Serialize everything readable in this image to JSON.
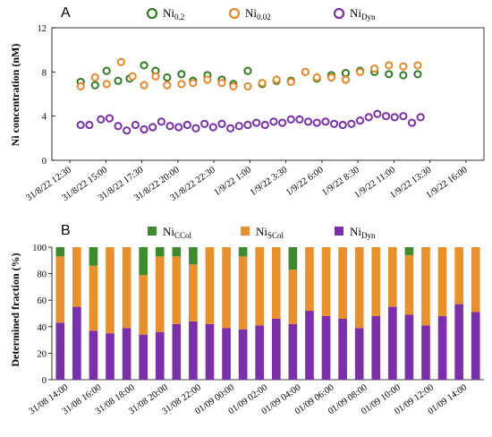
{
  "panel_a": {
    "letter": "A",
    "legend": [
      {
        "label_main": "Ni",
        "label_sub": "0.2",
        "color": "#2e7d23"
      },
      {
        "label_main": "Ni",
        "label_sub": "0.02",
        "color": "#e8862a"
      },
      {
        "label_main": "Ni",
        "label_sub": "Dyn",
        "color": "#7b2fa8"
      }
    ]
  },
  "panel_b": {
    "letter": "B",
    "legend": [
      {
        "label_main": "Ni",
        "label_sub": "CCol",
        "color": "#3f8a2e"
      },
      {
        "label_main": "Ni",
        "label_sub": "SCol",
        "color": "#e8902e"
      },
      {
        "label_main": "Ni",
        "label_sub": "Dyn",
        "color": "#7b2fa8"
      }
    ]
  },
  "chart_data": [
    {
      "type": "scatter",
      "ylabel": "Ni concentration (nM)",
      "ylim": [
        0,
        12
      ],
      "yticks": [
        "0",
        "4",
        "8",
        "12"
      ],
      "xlim_index": [
        0,
        15
      ],
      "xticks": [
        "31/8/22 12:30",
        "31/8/22 15:00",
        "31/8/22 17:30",
        "31/8/22 20:00",
        "31/8/22 22:30",
        "1/9/22 1:00",
        "1/9/22 3:30",
        "1/9/22 6:00",
        "1/9/22 8:30",
        "1/9/22 11:00",
        "1/9/22 13:30",
        "1/9/22 16:00"
      ],
      "grid": false,
      "legend_position": "top",
      "series": [
        {
          "name": "Ni0.2",
          "color": "#2e7d23",
          "x": [
            1.0,
            1.5,
            1.9,
            2.3,
            2.7,
            3.2,
            3.6,
            4.0,
            4.5,
            4.9,
            5.4,
            5.9,
            6.3,
            6.8,
            7.3,
            7.8,
            8.3,
            8.8,
            9.2,
            9.7,
            10.2,
            10.7,
            11.2,
            11.7,
            12.2,
            12.7
          ],
          "values": [
            7.1,
            6.8,
            8.1,
            7.2,
            7.4,
            8.6,
            8.1,
            7.5,
            7.8,
            7.2,
            7.7,
            7.3,
            6.9,
            8.1,
            6.9,
            7.2,
            7.2,
            8.0,
            7.4,
            7.7,
            7.9,
            8.1,
            8.0,
            7.8,
            7.7,
            7.8
          ]
        },
        {
          "name": "Ni0.02",
          "color": "#e8862a",
          "x": [
            1.0,
            1.5,
            1.9,
            2.4,
            2.8,
            3.2,
            3.6,
            4.0,
            4.5,
            4.9,
            5.4,
            5.9,
            6.3,
            6.8,
            7.3,
            7.8,
            8.3,
            8.8,
            9.2,
            9.7,
            10.2,
            10.7,
            11.2,
            11.7,
            12.2,
            12.7
          ],
          "values": [
            6.7,
            7.5,
            6.9,
            8.9,
            7.6,
            6.8,
            7.6,
            6.8,
            6.9,
            7.0,
            7.3,
            7.0,
            6.7,
            6.7,
            7.0,
            7.3,
            7.1,
            8.0,
            7.5,
            7.5,
            7.3,
            8.0,
            8.3,
            8.6,
            8.5,
            8.6
          ]
        },
        {
          "name": "NiDyn",
          "color": "#7b2fa8",
          "x": [
            1.0,
            1.3,
            1.7,
            2.0,
            2.3,
            2.6,
            2.9,
            3.2,
            3.5,
            3.8,
            4.1,
            4.4,
            4.7,
            5.0,
            5.3,
            5.6,
            5.9,
            6.2,
            6.5,
            6.8,
            7.1,
            7.4,
            7.7,
            8.0,
            8.3,
            8.6,
            8.9,
            9.2,
            9.5,
            9.8,
            10.1,
            10.4,
            10.7,
            11.0,
            11.3,
            11.6,
            11.9,
            12.2,
            12.5,
            12.8
          ],
          "values": [
            3.2,
            3.2,
            3.7,
            3.8,
            3.1,
            2.7,
            3.2,
            2.8,
            3.0,
            3.5,
            3.1,
            3.0,
            3.2,
            2.9,
            3.3,
            3.0,
            3.3,
            2.9,
            3.1,
            3.2,
            3.4,
            3.2,
            3.5,
            3.4,
            3.7,
            3.7,
            3.5,
            3.4,
            3.5,
            3.3,
            3.2,
            3.3,
            3.6,
            3.9,
            4.2,
            4.0,
            3.9,
            4.0,
            3.4,
            3.9
          ]
        }
      ]
    },
    {
      "type": "bar",
      "stacked": true,
      "ylabel": "Determined fraction (%)",
      "ylim": [
        0,
        100
      ],
      "yticks": [
        "0",
        "20",
        "40",
        "60",
        "80",
        "100"
      ],
      "xticks": [
        "31/08 14:00",
        "31/08 16:00",
        "31/08 18:00",
        "31/08 20:00",
        "31/08 22:00",
        "01/09 00:00",
        "01/09 02:00",
        "01/09 04:00",
        "01/09 06:00",
        "01/09 08:00",
        "01/09 10:00",
        "01/09 12:00",
        "01/09 14:00"
      ],
      "grid": false,
      "legend_position": "top",
      "series": [
        {
          "name": "NiDyn",
          "color": "#7b2fa8",
          "values": [
            43,
            55,
            37,
            35,
            39,
            34,
            36,
            42,
            44,
            42,
            39,
            38,
            41,
            46,
            42,
            52,
            48,
            46,
            39,
            48,
            55,
            49,
            41,
            48,
            57,
            51
          ]
        },
        {
          "name": "NiSCol",
          "color": "#e8902e",
          "values": [
            50,
            45,
            49,
            65,
            61,
            45,
            57,
            51,
            43,
            58,
            61,
            55,
            59,
            54,
            41,
            48,
            52,
            54,
            61,
            52,
            45,
            45,
            59,
            52,
            43,
            49
          ]
        },
        {
          "name": "NiCCol",
          "color": "#3f8a2e",
          "values": [
            7,
            0,
            14,
            0,
            0,
            21,
            7,
            7,
            13,
            0,
            0,
            7,
            0,
            0,
            17,
            0,
            0,
            0,
            0,
            0,
            0,
            6,
            0,
            0,
            0,
            0
          ]
        }
      ]
    }
  ]
}
